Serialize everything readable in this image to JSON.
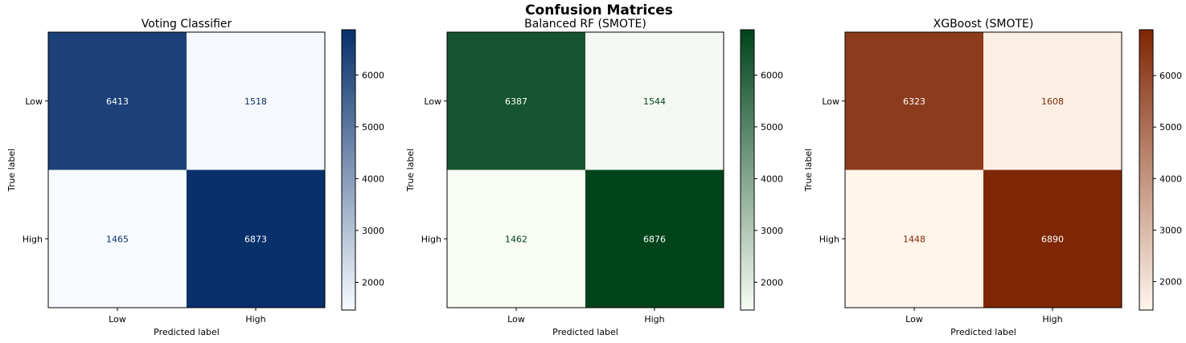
{
  "suptitle": "Confusion Matrices",
  "chart_data": [
    {
      "type": "heatmap",
      "title": "Voting Classifier",
      "xlabel": "Predicted label",
      "ylabel": "True label",
      "x_categories": [
        "Low",
        "High"
      ],
      "y_categories": [
        "Low",
        "High"
      ],
      "matrix": [
        [
          6413,
          1518
        ],
        [
          1465,
          6873
        ]
      ],
      "colormap": "Blues",
      "color_low": "#f7fbff",
      "color_high": "#08306b",
      "colorbar_ticks": [
        2000,
        3000,
        4000,
        5000,
        6000
      ]
    },
    {
      "type": "heatmap",
      "title": "Balanced RF (SMOTE)",
      "xlabel": "Predicted label",
      "ylabel": "True label",
      "x_categories": [
        "Low",
        "High"
      ],
      "y_categories": [
        "Low",
        "High"
      ],
      "matrix": [
        [
          6387,
          1544
        ],
        [
          1462,
          6876
        ]
      ],
      "colormap": "Greens",
      "color_low": "#f7fcf5",
      "color_high": "#00441b",
      "colorbar_ticks": [
        2000,
        3000,
        4000,
        5000,
        6000
      ]
    },
    {
      "type": "heatmap",
      "title": "XGBoost (SMOTE)",
      "xlabel": "Predicted label",
      "ylabel": "True label",
      "x_categories": [
        "Low",
        "High"
      ],
      "y_categories": [
        "Low",
        "High"
      ],
      "matrix": [
        [
          6323,
          1608
        ],
        [
          1448,
          6890
        ]
      ],
      "colormap": "Oranges",
      "color_low": "#fff5eb",
      "color_high": "#7f2704",
      "colorbar_ticks": [
        2000,
        3000,
        4000,
        5000,
        6000
      ]
    }
  ]
}
